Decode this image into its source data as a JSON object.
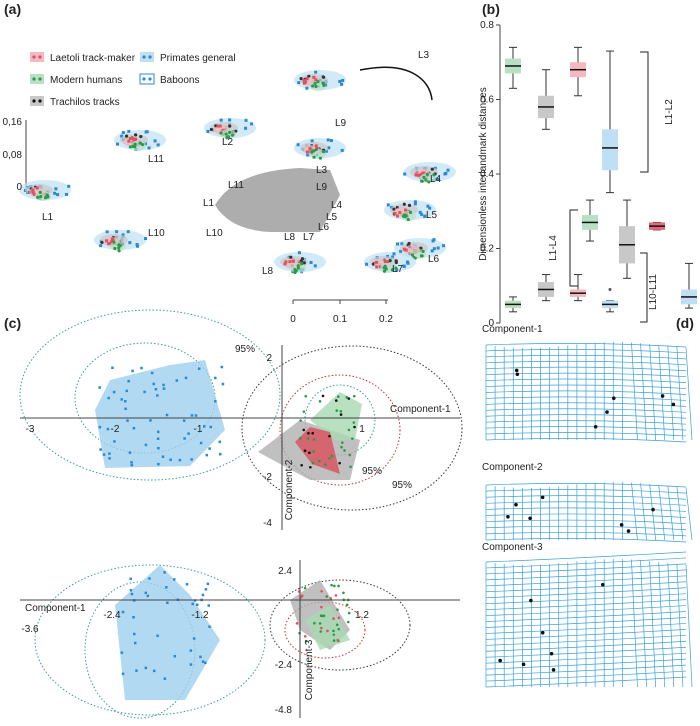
{
  "panel_a": {
    "label": "(a)",
    "legend": [
      "Laetoli track-maker",
      "Modern humans",
      "Trachilos tracks",
      "Primates general",
      "Baboons"
    ],
    "yticks": [
      "0,16",
      "0,08",
      "0"
    ],
    "xticks": [
      "0",
      "0.1",
      "0.2"
    ],
    "landmarks": [
      "L1",
      "L2",
      "L3",
      "L4",
      "L5",
      "L6",
      "L7",
      "L8",
      "L9",
      "L10",
      "L11"
    ],
    "foot_labels": [
      "L1",
      "L11",
      "L3",
      "L9",
      "L4",
      "L5",
      "L6",
      "L7",
      "L8",
      "L10"
    ]
  },
  "chart_data": {
    "type": "box",
    "label": "(b)",
    "ylabel": "Dimensionless interlandmark distances",
    "ylim": [
      0,
      0.8
    ],
    "yticks": [
      0,
      0.2,
      0.4,
      0.6,
      0.8
    ],
    "annotations": [
      "L1-L2",
      "L1-L4",
      "L10-L11"
    ],
    "boxes": [
      {
        "color": "#b9e0c4",
        "min": 0.63,
        "q1": 0.67,
        "median": 0.69,
        "q3": 0.71,
        "max": 0.74
      },
      {
        "color": "#c8c8c8",
        "min": 0.52,
        "q1": 0.55,
        "median": 0.58,
        "q3": 0.61,
        "max": 0.68
      },
      {
        "color": "#f4b8c0",
        "min": 0.61,
        "q1": 0.66,
        "median": 0.68,
        "q3": 0.7,
        "max": 0.74
      },
      {
        "color": "#bfe0f4",
        "min": 0.35,
        "q1": 0.41,
        "median": 0.47,
        "q3": 0.52,
        "max": 0.73
      },
      {
        "color": "#b9e0c4",
        "min": 0.22,
        "q1": 0.25,
        "median": 0.27,
        "q3": 0.29,
        "max": 0.33
      },
      {
        "color": "#c8c8c8",
        "min": 0.12,
        "q1": 0.16,
        "median": 0.21,
        "q3": 0.26,
        "max": 0.33
      },
      {
        "color": "#e06a78",
        "min": 0.25,
        "q1": 0.25,
        "median": 0.26,
        "q3": 0.27,
        "max": 0.27
      },
      {
        "color": "#b9e0c4",
        "min": 0.03,
        "q1": 0.04,
        "median": 0.05,
        "q3": 0.06,
        "max": 0.07
      },
      {
        "color": "#c8c8c8",
        "min": 0.06,
        "q1": 0.07,
        "median": 0.09,
        "q3": 0.11,
        "max": 0.13
      },
      {
        "color": "#f4b8c0",
        "min": 0.06,
        "q1": 0.07,
        "median": 0.08,
        "q3": 0.09,
        "max": 0.13
      },
      {
        "color": "#bfe0f4",
        "min": 0.03,
        "q1": 0.04,
        "median": 0.05,
        "q3": 0.06,
        "max": 0.06,
        "outliers": [
          0.09
        ]
      },
      {
        "color": "#bfe0f4",
        "min": 0.04,
        "q1": 0.05,
        "median": 0.07,
        "q3": 0.09,
        "max": 0.16
      }
    ]
  },
  "panel_c": {
    "label": "(c)",
    "top": {
      "xticks": [
        "-3",
        "-2",
        "-1",
        "1"
      ],
      "yticks": [
        "2",
        "-2",
        "-4"
      ],
      "xlabel": "Component-1",
      "ylabel": "Component-2",
      "notes": [
        "95%",
        "95%",
        "95%"
      ]
    },
    "bottom": {
      "xticks": [
        "-3.6",
        "-2.4",
        "-1.2",
        "1.2"
      ],
      "yticks": [
        "2.4",
        "-2.4",
        "-4.8"
      ],
      "xlabel": "Component-1",
      "ylabel": "Component-3"
    }
  },
  "panel_d": {
    "label": "(d)",
    "titles": [
      "Component-1",
      "Component-2",
      "Component-3"
    ]
  }
}
